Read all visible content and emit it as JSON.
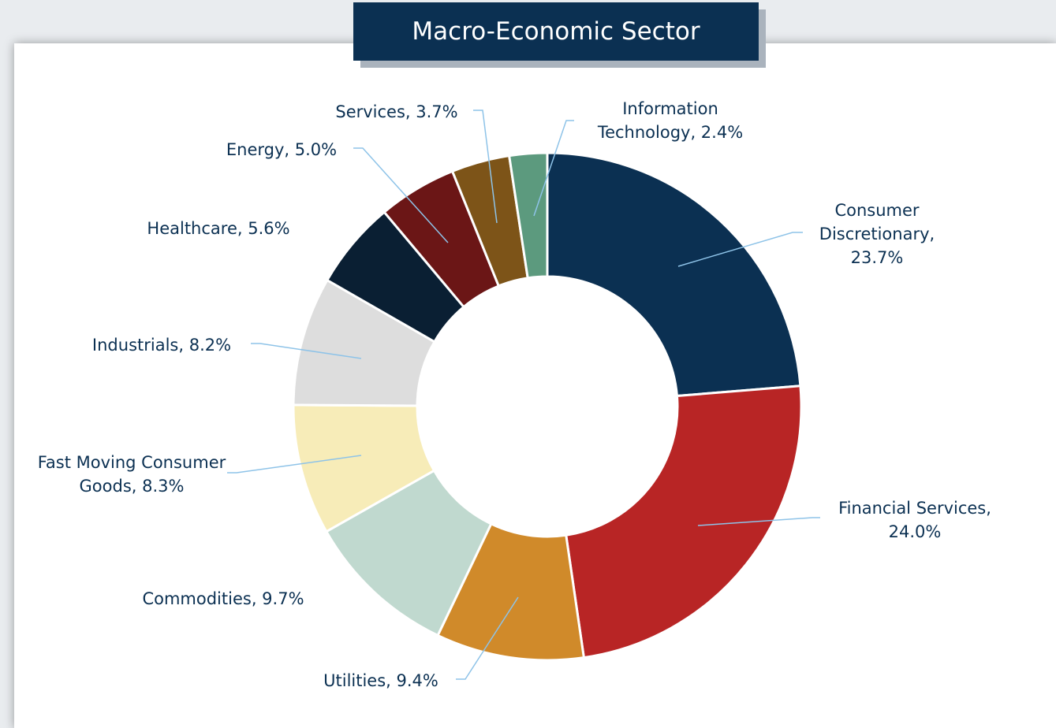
{
  "chart_data": {
    "type": "pie",
    "title": "Macro-Economic Sector",
    "donut": true,
    "values": [
      23.7,
      24.0,
      9.4,
      9.7,
      8.3,
      8.2,
      5.6,
      5.0,
      3.7,
      2.4
    ],
    "value_labels": [
      "Consumer Discretionary, 23.7%",
      "Financial Services, 24.0%",
      "Utilities, 9.4%",
      "Commodities, 9.7%",
      "Fast Moving Consumer Goods, 8.3%",
      "Industrials, 8.2%",
      "Healthcare, 5.6%",
      "Energy, 5.0%",
      "Services, 3.7%",
      "Information Technology, 2.4%"
    ],
    "colors": [
      "#0b3052",
      "#b82525",
      "#d08a2a",
      "#c0d9cf",
      "#f7ecb8",
      "#dddddd",
      "#0a1f33",
      "#6b1616",
      "#7d5418",
      "#5c9a7e"
    ]
  }
}
